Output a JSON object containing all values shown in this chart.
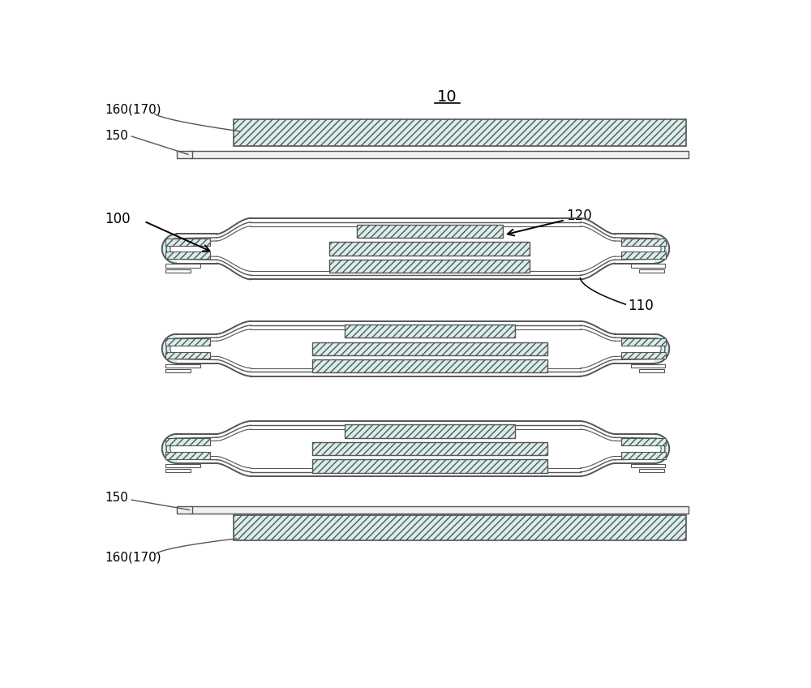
{
  "bg_color": "#ffffff",
  "line_color": "#555555",
  "hatch_fc": "#d8eeec",
  "label_160_170_top": "160(170)",
  "label_150_top": "150",
  "label_100": "100",
  "label_120": "120",
  "label_110": "110",
  "label_150_bot": "150",
  "label_160_170_bot": "160(170)",
  "title": "10",
  "figsize": [
    10.0,
    8.48
  ]
}
